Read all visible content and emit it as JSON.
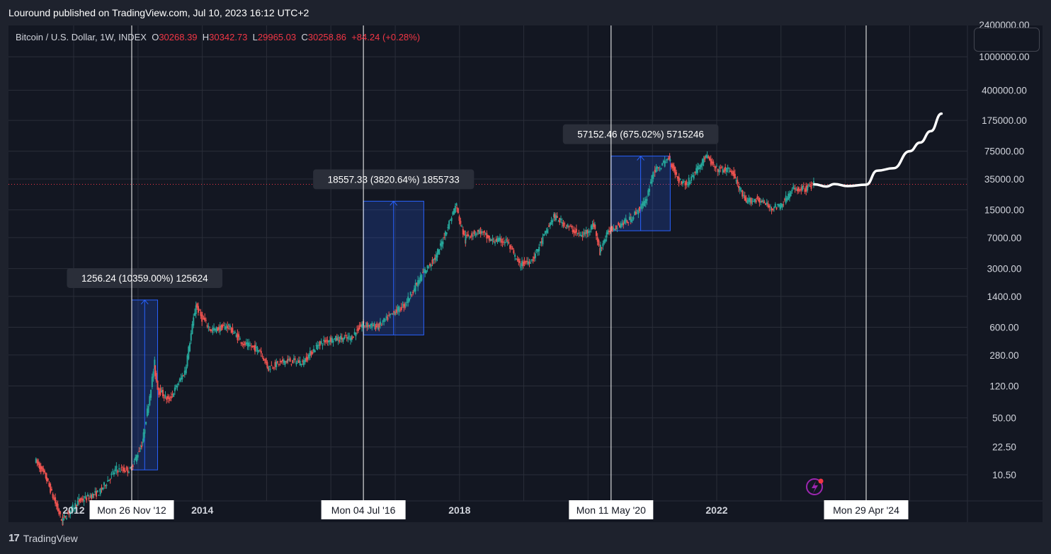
{
  "header": {
    "published": "Louround published on TradingView.com, Jul 10, 2023 16:12 UTC+2"
  },
  "symbol": {
    "name": "Bitcoin / U.S. Dollar, 1W, INDEX",
    "o_label": "O",
    "o": "30268.39",
    "h_label": "H",
    "h": "30342.73",
    "l_label": "L",
    "l": "29965.03",
    "c_label": "C",
    "c": "30258.86",
    "change": "+84.24 (+0.28%)"
  },
  "footer": {
    "brand_mark": "17",
    "brand": "TradingView"
  },
  "colors": {
    "background": "#131722",
    "up": "#26a69a",
    "down": "#ef5350",
    "range_box": "#2962ff",
    "current_price": "#f23645",
    "projection": "#ffffff"
  },
  "chart_data": {
    "type": "candlestick",
    "y_scale": "log",
    "grid": true,
    "y_ticks": [
      "2400000.00",
      "1000000.00",
      "400000.00",
      "175000.00",
      "75000.00",
      "35000.00",
      "15000.00",
      "7000.00",
      "3000.00",
      "1400.00",
      "600.00",
      "280.00",
      "120.00",
      "50.00",
      "22.50",
      "10.50"
    ],
    "x_ticks": [
      {
        "label": "2012",
        "date": "2012-01-01"
      },
      {
        "label": "2014",
        "date": "2014-01-01"
      },
      {
        "label": "2018",
        "date": "2018-01-01"
      },
      {
        "label": "2022",
        "date": "2022-01-01"
      }
    ],
    "vertical_markers": [
      {
        "label": "Mon 26 Nov '12",
        "date": "2012-11-26"
      },
      {
        "label": "Mon 04 Jul '16",
        "date": "2016-07-04"
      },
      {
        "label": "Mon 11 May '20",
        "date": "2020-05-11"
      },
      {
        "label": "Mon 29 Apr '24",
        "date": "2024-04-29"
      }
    ],
    "measurements": [
      {
        "label": "1256.24 (10359.00%) 125624",
        "from_date": "2012-11-26",
        "to_date": "2013-04-22",
        "from_price": 12,
        "to_price": 1268
      },
      {
        "label": "18557.33 (3820.64%) 1855733",
        "from_date": "2016-07-04",
        "to_date": "2017-06-12",
        "from_price": 486,
        "to_price": 19043
      },
      {
        "label": "57152.46 (675.02%) 5715246",
        "from_date": "2020-05-11",
        "to_date": "2021-04-12",
        "from_price": 8467,
        "to_price": 65619
      }
    ],
    "current_price": 30258.86,
    "price_series": [
      [
        "2011-06-01",
        16
      ],
      [
        "2011-08-01",
        10
      ],
      [
        "2011-11-01",
        3
      ],
      [
        "2012-02-01",
        5
      ],
      [
        "2012-06-01",
        6.5
      ],
      [
        "2012-09-01",
        12
      ],
      [
        "2012-11-26",
        12
      ],
      [
        "2013-02-01",
        25
      ],
      [
        "2013-04-08",
        200
      ],
      [
        "2013-05-01",
        110
      ],
      [
        "2013-07-01",
        80
      ],
      [
        "2013-10-01",
        180
      ],
      [
        "2013-12-02",
        1100
      ],
      [
        "2014-01-01",
        800
      ],
      [
        "2014-03-01",
        550
      ],
      [
        "2014-06-01",
        620
      ],
      [
        "2014-09-01",
        380
      ],
      [
        "2014-12-01",
        320
      ],
      [
        "2015-01-15",
        200
      ],
      [
        "2015-05-01",
        240
      ],
      [
        "2015-08-01",
        230
      ],
      [
        "2015-11-01",
        380
      ],
      [
        "2016-01-01",
        430
      ],
      [
        "2016-05-01",
        450
      ],
      [
        "2016-07-04",
        650
      ],
      [
        "2016-10-01",
        610
      ],
      [
        "2017-01-01",
        900
      ],
      [
        "2017-03-01",
        1100
      ],
      [
        "2017-06-12",
        2600
      ],
      [
        "2017-09-01",
        4300
      ],
      [
        "2017-12-17",
        17000
      ],
      [
        "2018-02-05",
        7000
      ],
      [
        "2018-05-01",
        8500
      ],
      [
        "2018-07-01",
        6500
      ],
      [
        "2018-10-01",
        6400
      ],
      [
        "2018-12-15",
        3300
      ],
      [
        "2019-03-01",
        3900
      ],
      [
        "2019-06-26",
        12500
      ],
      [
        "2019-09-01",
        10000
      ],
      [
        "2019-12-01",
        7300
      ],
      [
        "2020-02-10",
        10000
      ],
      [
        "2020-03-12",
        5000
      ],
      [
        "2020-05-11",
        8800
      ],
      [
        "2020-09-01",
        11500
      ],
      [
        "2020-12-01",
        19000
      ],
      [
        "2021-01-08",
        40000
      ],
      [
        "2021-04-12",
        62000
      ],
      [
        "2021-06-01",
        35000
      ],
      [
        "2021-07-20",
        30000
      ],
      [
        "2021-11-08",
        66000
      ],
      [
        "2022-01-01",
        46000
      ],
      [
        "2022-04-01",
        44000
      ],
      [
        "2022-06-18",
        19000
      ],
      [
        "2022-09-01",
        20000
      ],
      [
        "2022-11-09",
        16000
      ],
      [
        "2023-01-01",
        16500
      ],
      [
        "2023-03-15",
        26000
      ],
      [
        "2023-06-01",
        27000
      ],
      [
        "2023-07-10",
        30258
      ]
    ],
    "projection": [
      [
        "2023-07-10",
        30258
      ],
      [
        "2023-09-15",
        28500
      ],
      [
        "2023-11-01",
        30500
      ],
      [
        "2024-01-15",
        28800
      ],
      [
        "2024-04-29",
        30000
      ],
      [
        "2024-07-01",
        44000
      ],
      [
        "2024-10-01",
        47000
      ],
      [
        "2025-01-01",
        75000
      ],
      [
        "2025-03-01",
        95000
      ],
      [
        "2025-05-01",
        130000
      ],
      [
        "2025-07-01",
        210000
      ]
    ]
  }
}
